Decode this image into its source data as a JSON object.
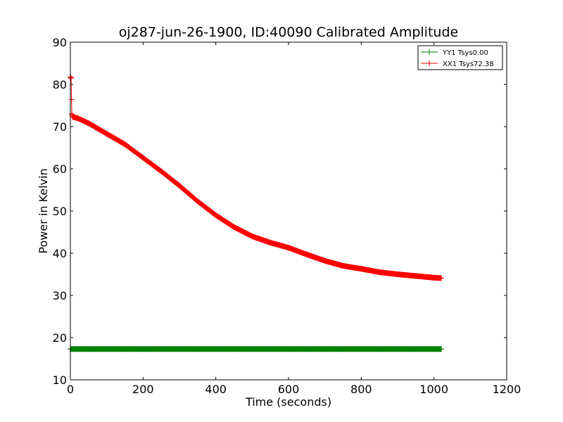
{
  "chart_data": {
    "type": "line",
    "title": "oj287-jun-26-1900, ID:40090 Calibrated Amplitude",
    "xlabel": "Time (seconds)",
    "ylabel": "Power in Kelvin",
    "xlim": [
      0,
      1200
    ],
    "ylim": [
      10,
      90
    ],
    "xticks": [
      0,
      200,
      400,
      600,
      800,
      1000,
      1200
    ],
    "yticks": [
      10,
      20,
      30,
      40,
      50,
      60,
      70,
      80,
      90
    ],
    "legend_position": "top-right",
    "grid": false,
    "series": [
      {
        "name": "YY1 Tsys0.00",
        "color": "#008000",
        "marker": "+",
        "x": [
          0,
          50,
          100,
          150,
          200,
          250,
          300,
          350,
          400,
          450,
          500,
          550,
          600,
          650,
          700,
          750,
          800,
          850,
          900,
          950,
          1000,
          1020
        ],
        "y": [
          17.3,
          17.3,
          17.3,
          17.3,
          17.3,
          17.3,
          17.3,
          17.3,
          17.3,
          17.3,
          17.3,
          17.3,
          17.3,
          17.3,
          17.3,
          17.3,
          17.3,
          17.3,
          17.3,
          17.3,
          17.3,
          17.3
        ]
      },
      {
        "name": "XX1 Tsys72.38",
        "color": "#ff0000",
        "marker": "+",
        "x": [
          0,
          2,
          4,
          6,
          20,
          50,
          100,
          150,
          200,
          250,
          300,
          350,
          400,
          450,
          500,
          550,
          600,
          650,
          700,
          750,
          800,
          850,
          900,
          950,
          1000,
          1020
        ],
        "y": [
          81.7,
          81.5,
          73.0,
          72.3,
          72.0,
          70.8,
          68.3,
          65.8,
          62.6,
          59.4,
          56.0,
          52.3,
          49.0,
          46.2,
          44.0,
          42.5,
          41.3,
          39.7,
          38.2,
          37.0,
          36.3,
          35.5,
          35.0,
          34.6,
          34.2,
          34.1
        ]
      }
    ]
  }
}
